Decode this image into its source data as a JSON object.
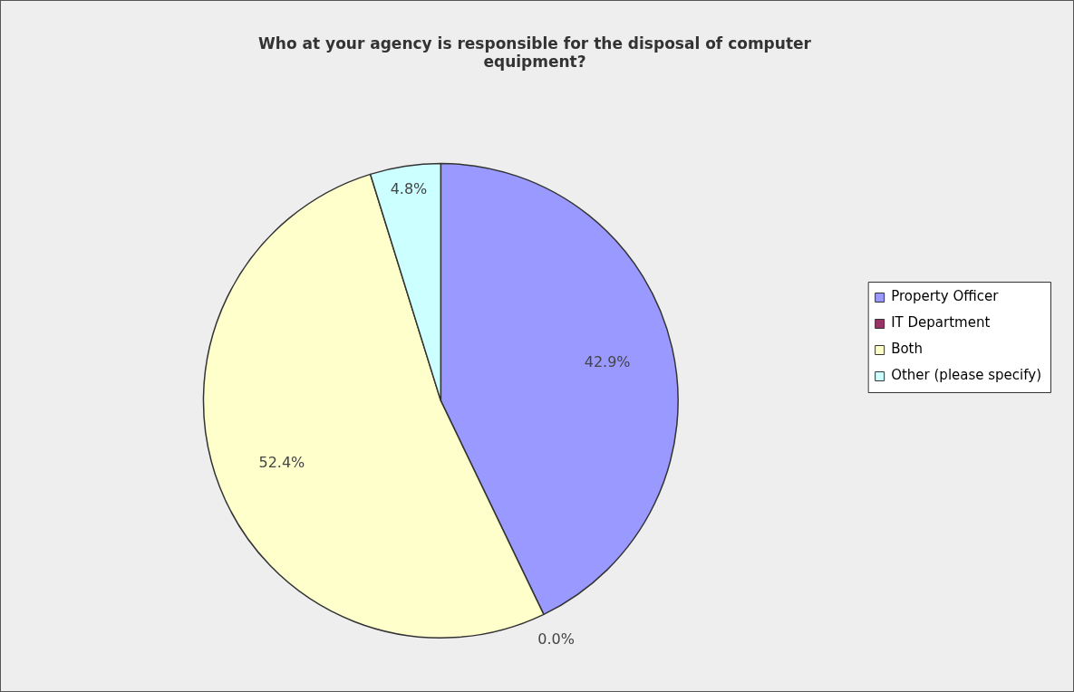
{
  "chart_data": {
    "type": "pie",
    "title": "Who at your agency is responsible for the disposal of computer equipment?",
    "categories": [
      "Property Officer",
      "IT Department",
      "Both",
      "Other (please specify)"
    ],
    "values": [
      42.9,
      0.0,
      52.4,
      4.8
    ],
    "colors": [
      "#9999ff",
      "#993366",
      "#ffffcc",
      "#ccffff"
    ],
    "value_labels": [
      "42.9%",
      "0.0%",
      "52.4%",
      "4.8%"
    ],
    "legend": "right"
  }
}
